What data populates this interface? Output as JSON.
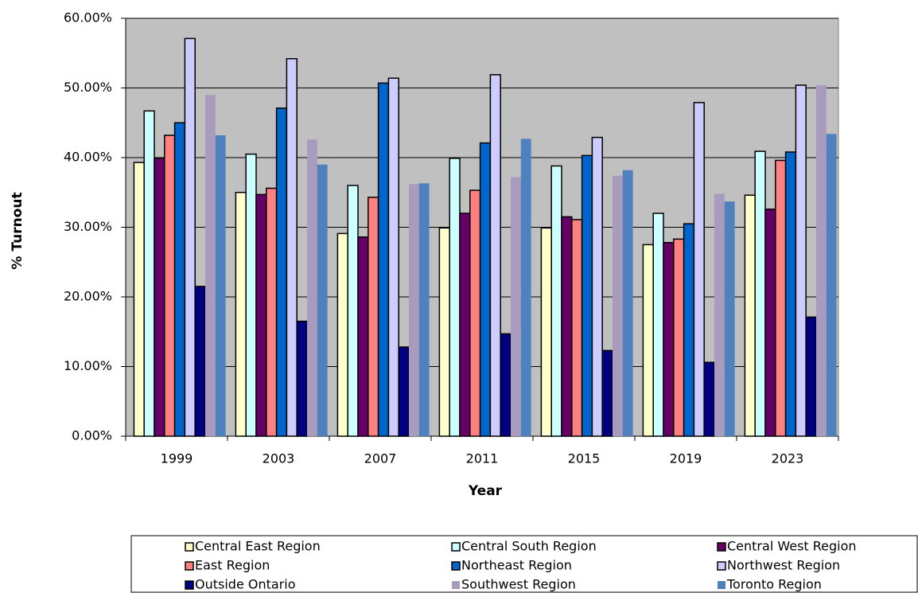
{
  "chart_data": {
    "type": "bar",
    "x_label": "Year",
    "y_label": "% Turnout",
    "categories": [
      "1999",
      "2003",
      "2007",
      "2011",
      "2015",
      "2019",
      "2023"
    ],
    "ylim": [
      0,
      60
    ],
    "yticks": [
      {
        "value": 0,
        "label": "0.00%"
      },
      {
        "value": 10,
        "label": "10.00%"
      },
      {
        "value": 20,
        "label": "20.00%"
      },
      {
        "value": 30,
        "label": "30.00%"
      },
      {
        "value": 40,
        "label": "40.00%"
      },
      {
        "value": 50,
        "label": "50.00%"
      },
      {
        "value": 60,
        "label": "60.00%"
      }
    ],
    "grid": true,
    "plot_background": "#c0c0c0",
    "series": [
      {
        "name": "Central East Region",
        "color": "#ffffcc",
        "border": "#000000",
        "values": [
          39.3,
          35.0,
          29.1,
          29.9,
          29.9,
          27.5,
          34.6
        ]
      },
      {
        "name": "Central South Region",
        "color": "#ccffff",
        "border": "#000000",
        "values": [
          46.7,
          40.5,
          36.0,
          39.9,
          38.8,
          32.0,
          40.9
        ]
      },
      {
        "name": "Central West Region",
        "color": "#660066",
        "border": "#000000",
        "values": [
          39.9,
          34.7,
          28.6,
          32.0,
          31.5,
          27.8,
          32.6
        ]
      },
      {
        "name": "East Region",
        "color": "#ff8080",
        "border": "#000000",
        "values": [
          43.2,
          35.6,
          34.3,
          35.3,
          31.1,
          28.3,
          39.6
        ]
      },
      {
        "name": "Northeast Region",
        "color": "#0066cc",
        "border": "#000000",
        "values": [
          45.0,
          47.1,
          50.7,
          42.1,
          40.3,
          30.5,
          40.8
        ]
      },
      {
        "name": "Northwest Region",
        "color": "#ccccff",
        "border": "#000000",
        "values": [
          57.1,
          54.2,
          51.4,
          51.9,
          42.9,
          47.9,
          50.4
        ]
      },
      {
        "name": "Outside Ontario",
        "color": "#000080",
        "border": "#000000",
        "values": [
          21.5,
          16.5,
          12.8,
          14.7,
          12.3,
          10.6,
          17.1
        ]
      },
      {
        "name": "Southwest Region",
        "color": "#a99bbd",
        "values": [
          49.0,
          42.6,
          36.2,
          37.2,
          37.4,
          34.8,
          50.4
        ]
      },
      {
        "name": "Toronto Region",
        "color": "#4f81bd",
        "values": [
          43.2,
          39.0,
          36.3,
          42.7,
          38.2,
          33.7,
          43.4
        ]
      }
    ]
  }
}
